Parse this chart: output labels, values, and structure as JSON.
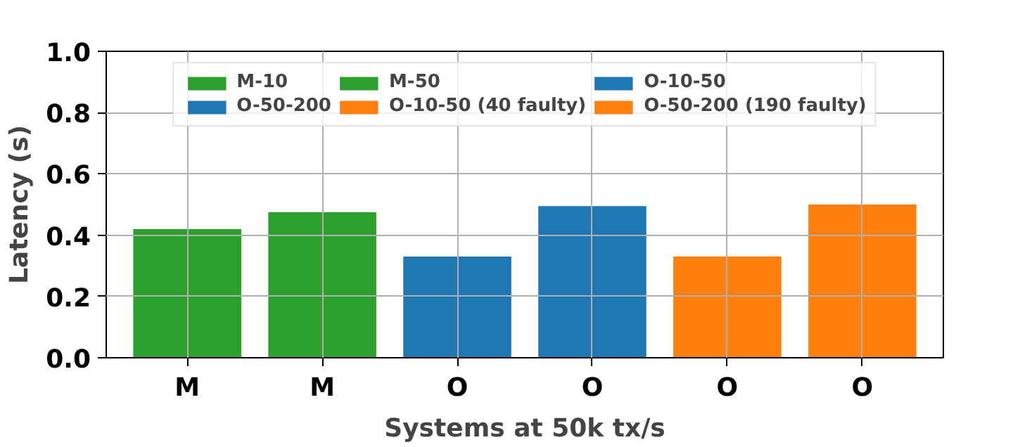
{
  "chart_data": {
    "type": "bar",
    "xlabel": "Systems at 50k tx/s",
    "ylabel": "Latency (s)",
    "categories": [
      "M",
      "M",
      "O",
      "O",
      "O",
      "O"
    ],
    "series": [
      {
        "name": "M-10",
        "color": "#2ca02c",
        "values": [
          0.42,
          null,
          null,
          null,
          null,
          null
        ]
      },
      {
        "name": "M-50",
        "color": "#2ca02c",
        "values": [
          null,
          0.475,
          null,
          null,
          null,
          null
        ]
      },
      {
        "name": "O-10-50",
        "color": "#1f77b4",
        "values": [
          null,
          null,
          0.33,
          null,
          null,
          null
        ]
      },
      {
        "name": "O-50-200",
        "color": "#1f77b4",
        "values": [
          null,
          null,
          null,
          0.495,
          null,
          null
        ]
      },
      {
        "name": "O-10-50 (40 faulty)",
        "color": "#ff7f0e",
        "values": [
          null,
          null,
          null,
          null,
          0.33,
          null
        ]
      },
      {
        "name": "O-50-200 (190 faulty)",
        "color": "#ff7f0e",
        "values": [
          null,
          null,
          null,
          null,
          null,
          0.5
        ]
      }
    ],
    "ylim": [
      0,
      1.0
    ],
    "yticks": [
      {
        "value": 0,
        "label": "0.0"
      },
      {
        "value": 0.2,
        "label": "0.2"
      },
      {
        "value": 0.4,
        "label": "0.4"
      },
      {
        "value": 0.6,
        "label": "0.6"
      },
      {
        "value": 0.8,
        "label": "0.8"
      },
      {
        "value": 1.0,
        "label": "1.0"
      }
    ],
    "grid": true,
    "legend": "top"
  }
}
